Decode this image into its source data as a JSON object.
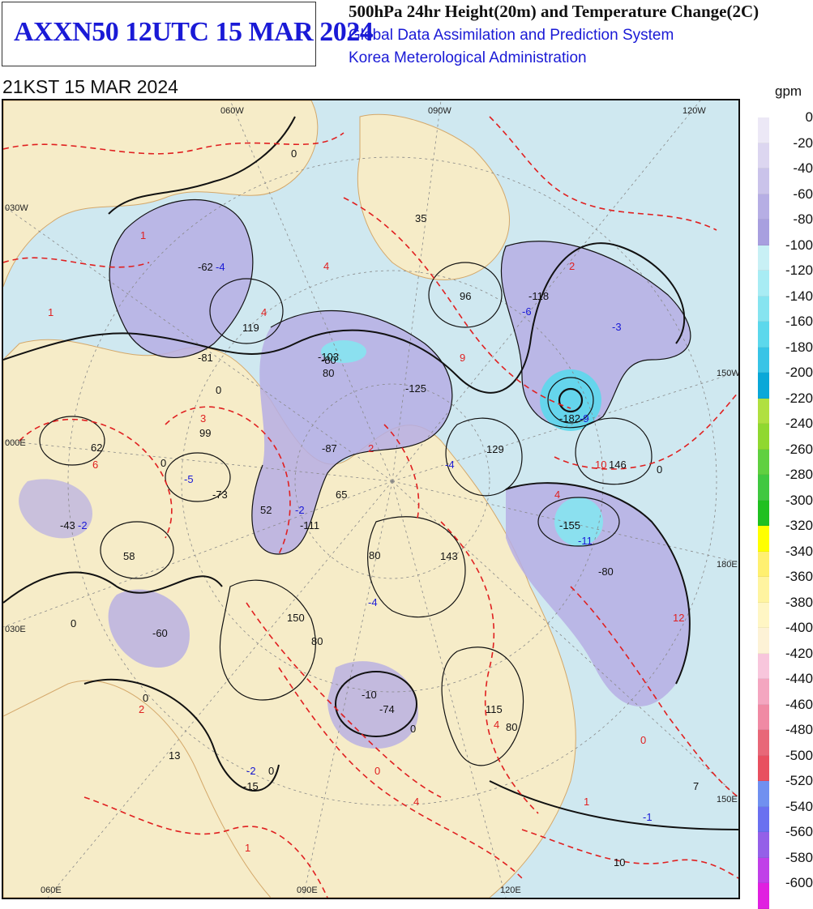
{
  "header": {
    "product_id": "AXXN50 12UTC 15 MAR 2024",
    "line1": "500hPa 24hr Height(20m) and Temperature Change(2C)",
    "line2": "Global Data Assimilation and Prediction System",
    "line3": "Korea Meterological Administration",
    "valid_time": "21KST 15 MAR 2024"
  },
  "legend": {
    "unit": "gpm",
    "labels": [
      "0",
      "-20",
      "-40",
      "-60",
      "-80",
      "-100",
      "-120",
      "-140",
      "-160",
      "-180",
      "-200",
      "-220",
      "-240",
      "-260",
      "-280",
      "-300",
      "-320",
      "-340",
      "-360",
      "-380",
      "-400",
      "-420",
      "-440",
      "-460",
      "-480",
      "-500",
      "-520",
      "-540",
      "-560",
      "-580",
      "-600"
    ],
    "colors": [
      "#ece8f6",
      "#dcd6f0",
      "#cac3ea",
      "#b6aee4",
      "#a89fdf",
      "#c8f0f5",
      "#a8ecf4",
      "#86e4f0",
      "#5cd8ec",
      "#38c4e6",
      "#0aa8d8",
      "#b0e040",
      "#90d830",
      "#60d040",
      "#40c840",
      "#20c020",
      "#ffff00",
      "#fff070",
      "#fff4a0",
      "#fff6c4",
      "#fdf2d6",
      "#f8c6dc",
      "#f4a6c0",
      "#f08aa4",
      "#e86878",
      "#e85060",
      "#7090f0",
      "#6a70f0",
      "#9460e8",
      "#c040e8",
      "#e020e0"
    ]
  },
  "axes": {
    "top": [
      "060W",
      "090W",
      "120W"
    ],
    "left": [
      "030W",
      "000E",
      "030E"
    ],
    "right": [
      "150W",
      "180E",
      "150E"
    ],
    "bottom": [
      "060E",
      "090E",
      "120E"
    ]
  },
  "map_labels": {
    "black": [
      {
        "t": "-62"
      },
      {
        "t": "119"
      },
      {
        "t": "-81"
      },
      {
        "t": "-103"
      },
      {
        "t": "35"
      },
      {
        "t": "96"
      },
      {
        "t": "-118"
      },
      {
        "t": "-125"
      },
      {
        "t": "-182"
      },
      {
        "t": "129"
      },
      {
        "t": "146"
      },
      {
        "t": "99"
      },
      {
        "t": "-87"
      },
      {
        "t": "62"
      },
      {
        "t": "-73"
      },
      {
        "t": "52"
      },
      {
        "t": "65"
      },
      {
        "t": "-111"
      },
      {
        "t": "-155"
      },
      {
        "t": "-43"
      },
      {
        "t": "58"
      },
      {
        "t": "143"
      },
      {
        "t": "150"
      },
      {
        "t": "-60"
      },
      {
        "t": "-10"
      },
      {
        "t": "-74"
      },
      {
        "t": "115"
      },
      {
        "t": "13"
      },
      {
        "t": "-15"
      },
      {
        "t": "7"
      },
      {
        "t": "10"
      }
    ],
    "blue": [
      {
        "t": "-4"
      },
      {
        "t": "-6"
      },
      {
        "t": "-3"
      },
      {
        "t": "-9"
      },
      {
        "t": "-4"
      },
      {
        "t": "-5"
      },
      {
        "t": "-2"
      },
      {
        "t": "-4"
      },
      {
        "t": "-11"
      },
      {
        "t": "-2"
      },
      {
        "t": "-1"
      },
      {
        "t": "-2"
      }
    ],
    "red": [
      {
        "t": "1"
      },
      {
        "t": "1"
      },
      {
        "t": "4"
      },
      {
        "t": "4"
      },
      {
        "t": "2"
      },
      {
        "t": "9"
      },
      {
        "t": "3"
      },
      {
        "t": "6"
      },
      {
        "t": "2"
      },
      {
        "t": "10"
      },
      {
        "t": "4"
      },
      {
        "t": "12"
      },
      {
        "t": "2"
      },
      {
        "t": "4"
      },
      {
        "t": "1"
      },
      {
        "t": "4"
      },
      {
        "t": "1"
      },
      {
        "t": "0"
      },
      {
        "t": "0"
      }
    ],
    "contour": [
      {
        "t": "0"
      },
      {
        "t": "0"
      },
      {
        "t": "80"
      },
      {
        "t": "80"
      },
      {
        "t": "-80"
      },
      {
        "t": "80"
      },
      {
        "t": "0"
      },
      {
        "t": "0"
      },
      {
        "t": "0"
      },
      {
        "t": "-80"
      },
      {
        "t": "80"
      },
      {
        "t": "0"
      },
      {
        "t": "0"
      },
      {
        "t": "0"
      }
    ]
  }
}
